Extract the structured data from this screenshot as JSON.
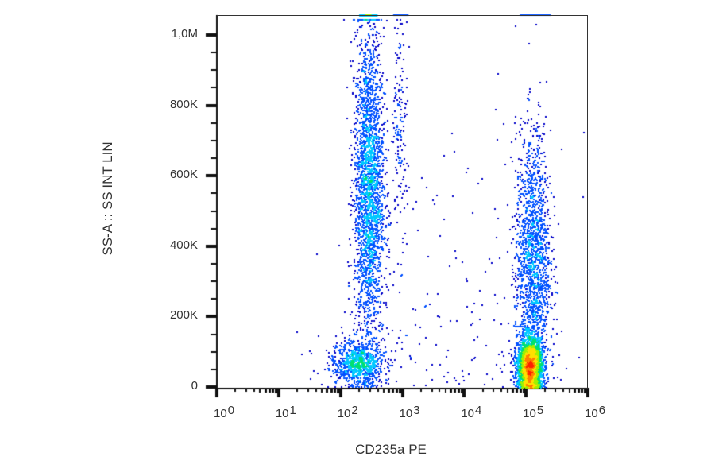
{
  "chart_data": {
    "type": "scatter",
    "subtype": "flow-cytometry density dot plot",
    "title": "",
    "xlabel": "CD235a PE",
    "ylabel": "SS-A :: SS INT LIN",
    "x_scale": "log",
    "xlim": [
      1,
      1000000
    ],
    "ylim": [
      0,
      1050000
    ],
    "x_ticks": [
      {
        "base": "10",
        "exp": "0",
        "value": 1
      },
      {
        "base": "10",
        "exp": "1",
        "value": 10
      },
      {
        "base": "10",
        "exp": "2",
        "value": 100
      },
      {
        "base": "10",
        "exp": "3",
        "value": 1000
      },
      {
        "base": "10",
        "exp": "4",
        "value": 10000
      },
      {
        "base": "10",
        "exp": "5",
        "value": 100000
      },
      {
        "base": "10",
        "exp": "6",
        "value": 1000000
      }
    ],
    "y_ticks": [
      {
        "label": "0",
        "value": 0
      },
      {
        "label": "200K",
        "value": 200000
      },
      {
        "label": "400K",
        "value": 400000
      },
      {
        "label": "600K",
        "value": 600000
      },
      {
        "label": "800K",
        "value": 800000
      },
      {
        "label": "1,0M",
        "value": 1000000
      }
    ],
    "grid": false,
    "legend": null,
    "colormap": [
      "#0000c8",
      "#0050ff",
      "#00c8ff",
      "#00e070",
      "#a0f000",
      "#ffe000",
      "#ff8000",
      "#ff2000"
    ],
    "populations": [
      {
        "name": "CD235a-dim low-SS cluster",
        "x_log_center": 2.25,
        "y_center": 70000,
        "x_log_sd": 0.22,
        "y_sd": 30000,
        "n": 900,
        "peak_density": "green"
      },
      {
        "name": "CD235a-dim vertical band",
        "x_log_center": 2.45,
        "y_center": 560000,
        "x_log_sd": 0.12,
        "y_sd": 230000,
        "n": 2600,
        "peak_density": "green"
      },
      {
        "name": "sparse column near 10^3",
        "x_log_center": 2.95,
        "y_center": 760000,
        "x_log_sd": 0.06,
        "y_sd": 150000,
        "n": 160,
        "peak_density": "blue"
      },
      {
        "name": "CD235a-bright erythrocytes",
        "x_log_center": 5.05,
        "y_center": 60000,
        "x_log_sd": 0.1,
        "y_sd": 40000,
        "n": 2600,
        "peak_density": "red"
      },
      {
        "name": "CD235a-bright high-SS tail",
        "x_log_center": 5.1,
        "y_center": 350000,
        "x_log_sd": 0.14,
        "y_sd": 190000,
        "n": 1800,
        "peak_density": "cyan"
      },
      {
        "name": "scattered events",
        "x_log_center": 3.8,
        "y_center": 200000,
        "x_log_sd": 0.9,
        "y_sd": 250000,
        "n": 160,
        "peak_density": "blue"
      }
    ]
  }
}
